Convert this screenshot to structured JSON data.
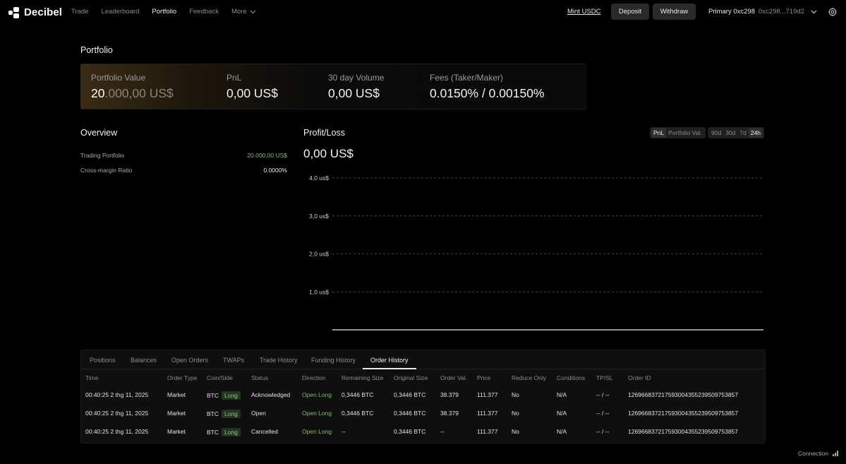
{
  "nav": {
    "brand": "Decibel",
    "links": [
      {
        "label": "Trade",
        "active": false
      },
      {
        "label": "Leaderboard",
        "active": false
      },
      {
        "label": "Portfolio",
        "active": true
      },
      {
        "label": "Feedback",
        "active": false
      }
    ],
    "more_label": "More",
    "mint_label": "Mint USDC",
    "deposit_label": "Deposit",
    "withdraw_label": "Withdraw",
    "account_name": "Primary 0xc298",
    "account_address": "0xc298...719d2",
    "icons": {
      "logo": "decibel-logo-icon",
      "chevron": "chevron-down-icon",
      "settings": "gear-icon"
    }
  },
  "page": {
    "title": "Portfolio"
  },
  "summary": {
    "portfolio_value_label": "Portfolio Value",
    "portfolio_value_bright": "20",
    "portfolio_value_dim": ".000,00 US$",
    "pnl_label": "PnL",
    "pnl_value": "0,00 US$",
    "volume_label": "30 day Volume",
    "volume_value": "0,00 US$",
    "fees_label": "Fees (Taker/Maker)",
    "fees_value": "0.0150% / 0.00150%"
  },
  "overview": {
    "title": "Overview",
    "rows": [
      {
        "label": "Trading Portfolio",
        "value": "20.000,00 US$"
      },
      {
        "label": "Cross-margin Ratio",
        "value": "0.0000%"
      }
    ]
  },
  "profit_loss": {
    "title": "Profit/Loss",
    "value": "0,00 US$",
    "mode_toggle": [
      {
        "label": "PnL",
        "active": true
      },
      {
        "label": "Portfolio Val.",
        "active": false
      }
    ],
    "range_toggle": [
      {
        "label": "90d",
        "active": false
      },
      {
        "label": "30d",
        "active": false
      },
      {
        "label": "7d",
        "active": false
      },
      {
        "label": "24h",
        "active": true
      }
    ]
  },
  "chart_data": {
    "type": "line",
    "title": "",
    "xlabel": "",
    "ylabel": "",
    "y_ticks": [
      "1,0 us$",
      "2,0 us$",
      "3,0 us$",
      "4,0 us$"
    ],
    "y_tick_values": [
      1,
      2,
      3,
      4
    ],
    "ylim": [
      0,
      4
    ],
    "series": [
      {
        "values": [
          0,
          0
        ]
      }
    ],
    "grid": "dashed horizontal",
    "line_color": "#e8e8e8"
  },
  "orders": {
    "tabs": [
      {
        "label": "Positions",
        "active": false
      },
      {
        "label": "Balances",
        "active": false
      },
      {
        "label": "Open Orders",
        "active": false
      },
      {
        "label": "TWAPs",
        "active": false
      },
      {
        "label": "Trade History",
        "active": false
      },
      {
        "label": "Funding History",
        "active": false
      },
      {
        "label": "Order History",
        "active": true
      }
    ],
    "columns": [
      "Time",
      "Order Type",
      "Coin/Side",
      "Status",
      "Direction",
      "Remaining Size",
      "Original Size",
      "Order Val.",
      "Price",
      "Reduce Only",
      "Conditions",
      "TP/SL",
      "Order ID"
    ],
    "rows": [
      {
        "time": "00:40:25 2 thg 11, 2025",
        "type": "Market",
        "coin": "BTC",
        "side": "Long",
        "status": "Acknowledged",
        "direction": "Open Long",
        "remaining": "0,3446 BTC",
        "original": "0,3446 BTC",
        "order_val": "38.379",
        "price": "111.377",
        "reduce_only": "No",
        "conditions": "N/A",
        "tpsl": "-- / --",
        "order_id": "126966837217593004355239509753857"
      },
      {
        "time": "00:40:25 2 thg 11, 2025",
        "type": "Market",
        "coin": "BTC",
        "side": "Long",
        "status": "Open",
        "direction": "Open Long",
        "remaining": "0,3446 BTC",
        "original": "0,3446 BTC",
        "order_val": "38.379",
        "price": "111.377",
        "reduce_only": "No",
        "conditions": "N/A",
        "tpsl": "-- / --",
        "order_id": "126966837217593004355239509753857"
      },
      {
        "time": "00:40:25 2 thg 11, 2025",
        "type": "Market",
        "coin": "BTC",
        "side": "Long",
        "status": "Cancelled",
        "direction": "Open Long",
        "remaining": "--",
        "original": "0,3446 BTC",
        "order_val": "--",
        "price": "111.377",
        "reduce_only": "No",
        "conditions": "N/A",
        "tpsl": "-- / --",
        "order_id": "126966837217593004355239509753857"
      }
    ]
  },
  "footer": {
    "connection_label": "Connection",
    "connection_icon": "signal-bars-icon"
  },
  "colors": {
    "accent_green": "#7fbf6a",
    "badge_bg": "#23351f",
    "background": "#000000"
  }
}
